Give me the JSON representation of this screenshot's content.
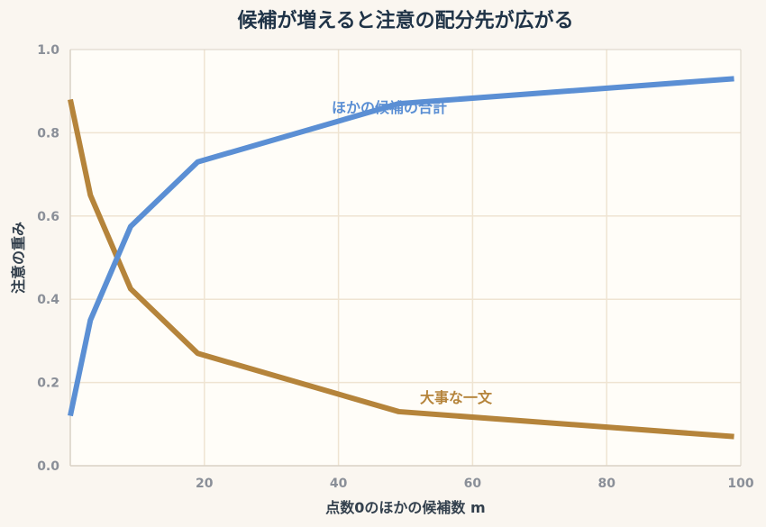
{
  "chart_data": {
    "type": "line",
    "title": "候補が増えると注意の配分先が広がる",
    "xlabel": "点数0のほかの候補数 m",
    "ylabel": "注意の重み",
    "xlim": [
      0,
      100
    ],
    "ylim": [
      0,
      1
    ],
    "xticks": [
      "20",
      "40",
      "60",
      "80",
      "100"
    ],
    "yticks": [
      "0.0",
      "0.2",
      "0.4",
      "0.6",
      "0.8",
      "1.0"
    ],
    "grid": true,
    "series": [
      {
        "name": "大事な一文",
        "color": "#b5843b",
        "x": [
          0,
          3,
          9,
          19,
          49,
          99
        ],
        "y": [
          0.88,
          0.65,
          0.425,
          0.27,
          0.13,
          0.07
        ]
      },
      {
        "name": "ほかの候補の合計",
        "color": "#5b8fd4",
        "x": [
          0,
          3,
          9,
          19,
          49,
          99
        ],
        "y": [
          0.12,
          0.35,
          0.575,
          0.73,
          0.87,
          0.93
        ]
      }
    ]
  },
  "colors": {
    "page_background": "#faf6f0",
    "plot_background": "#fffdf8",
    "grid": "#efe4d2",
    "title": "#1f3347"
  }
}
